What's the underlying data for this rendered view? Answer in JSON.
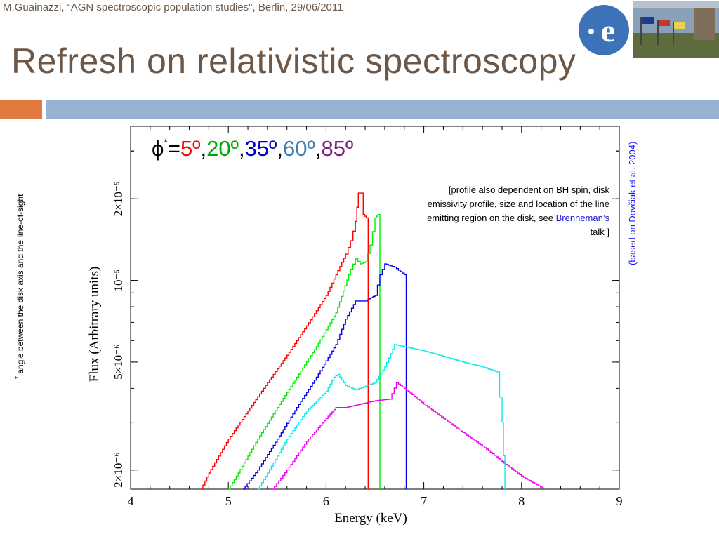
{
  "header": {
    "text": "M.Guainazzi, “AGN spectroscopic population studies\", Berlin, 29/06/2011"
  },
  "slide": {
    "title": "Refresh on relativistic spectroscopy"
  },
  "logo": {
    "glyph": "e",
    "color": "#3c73b8"
  },
  "phi_label": {
    "symbol": "ϕ",
    "star": "*",
    "equals": "=",
    "angles": [
      {
        "text": "5º",
        "color": "#ff0000"
      },
      {
        "text": "20º",
        "color": "#00aa00"
      },
      {
        "text": "35º",
        "color": "#0000cc"
      },
      {
        "text": "60º",
        "color": "#3d7fb0"
      },
      {
        "text": "85º",
        "color": "#7a1f7a"
      }
    ],
    "sep": ","
  },
  "footnote": {
    "star": "*",
    "text": "angle between the disk axis and the line-of-sight"
  },
  "side_note": {
    "text": "(based on Dovčiak et al. 2004)"
  },
  "note": {
    "text": "[profile also dependent on BH spin, disk emissivity profile, size and location of the line emitting region on the disk, see ",
    "link": "Brenneman’s",
    "tail": " talk ]"
  },
  "chart_data": {
    "type": "line",
    "xlabel": "Energy (keV)",
    "ylabel": "Flux (Arbitrary units)",
    "xlim": [
      4,
      9
    ],
    "ylim": [
      1.7e-06,
      3.7e-05
    ],
    "log_y": true,
    "grid": false,
    "x_ticks": [
      "4",
      "5",
      "6",
      "7",
      "8",
      "9"
    ],
    "y_ticks": [
      {
        "value": 2e-06,
        "label": "2×10⁻⁶"
      },
      {
        "value": 5e-06,
        "label": "5×10⁻⁶"
      },
      {
        "value": 1e-05,
        "label": "10⁻⁵"
      },
      {
        "value": 2e-05,
        "label": "2×10⁻⁵"
      }
    ],
    "series": [
      {
        "color": "#ff0000",
        "points": [
          [
            4.72,
            1.7e-06
          ],
          [
            4.8,
            1.95e-06
          ],
          [
            5.0,
            2.6e-06
          ],
          [
            5.2,
            3.3e-06
          ],
          [
            5.4,
            4.2e-06
          ],
          [
            5.6,
            5.3e-06
          ],
          [
            5.8,
            6.8e-06
          ],
          [
            6.0,
            8.8e-06
          ],
          [
            6.2,
            1.25e-05
          ],
          [
            6.25,
            1.4e-05
          ],
          [
            6.3,
            1.65e-05
          ],
          [
            6.33,
            2.1e-05
          ],
          [
            6.36,
            2.1e-05
          ],
          [
            6.38,
            1.75e-05
          ],
          [
            6.41,
            1.7e-05
          ],
          [
            6.43,
            1.7e-06
          ]
        ]
      },
      {
        "color": "#00ee00",
        "points": [
          [
            5.0,
            1.7e-06
          ],
          [
            5.1,
            1.95e-06
          ],
          [
            5.3,
            2.6e-06
          ],
          [
            5.5,
            3.4e-06
          ],
          [
            5.7,
            4.4e-06
          ],
          [
            5.9,
            5.7e-06
          ],
          [
            6.1,
            7.6e-06
          ],
          [
            6.25,
            1.1e-05
          ],
          [
            6.3,
            1.2e-05
          ],
          [
            6.35,
            1.15e-05
          ],
          [
            6.4,
            1.17e-05
          ],
          [
            6.45,
            1.35e-05
          ],
          [
            6.5,
            1.7e-05
          ],
          [
            6.53,
            1.75e-05
          ],
          [
            6.55,
            1.7e-06
          ]
        ]
      },
      {
        "color": "#0000ee",
        "points": [
          [
            5.15,
            1.7e-06
          ],
          [
            5.3,
            2e-06
          ],
          [
            5.5,
            2.6e-06
          ],
          [
            5.7,
            3.4e-06
          ],
          [
            5.9,
            4.4e-06
          ],
          [
            6.1,
            5.8e-06
          ],
          [
            6.2,
            7.2e-06
          ],
          [
            6.3,
            8.4e-06
          ],
          [
            6.4,
            8.4e-06
          ],
          [
            6.5,
            8.8e-06
          ],
          [
            6.55,
            1.05e-05
          ],
          [
            6.6,
            1.15e-05
          ],
          [
            6.7,
            1.12e-05
          ],
          [
            6.8,
            1.05e-05
          ],
          [
            6.82,
            1.7e-06
          ]
        ]
      },
      {
        "color": "#00eeee",
        "points": [
          [
            5.3,
            1.7e-06
          ],
          [
            5.4,
            1.95e-06
          ],
          [
            5.6,
            2.6e-06
          ],
          [
            5.8,
            3.3e-06
          ],
          [
            6.0,
            3.9e-06
          ],
          [
            6.08,
            4.4e-06
          ],
          [
            6.12,
            4.5e-06
          ],
          [
            6.2,
            4.1e-06
          ],
          [
            6.3,
            3.95e-06
          ],
          [
            6.5,
            4.2e-06
          ],
          [
            6.6,
            4.8e-06
          ],
          [
            6.7,
            5.8e-06
          ],
          [
            6.8,
            5.7e-06
          ],
          [
            7.0,
            5.5e-06
          ],
          [
            7.2,
            5.25e-06
          ],
          [
            7.4,
            5e-06
          ],
          [
            7.6,
            4.8e-06
          ],
          [
            7.75,
            4.6e-06
          ],
          [
            7.8,
            3e-06
          ],
          [
            7.83,
            1.7e-06
          ]
        ]
      },
      {
        "color": "#ee00ee",
        "points": [
          [
            5.45,
            1.7e-06
          ],
          [
            5.6,
            2e-06
          ],
          [
            5.8,
            2.55e-06
          ],
          [
            6.0,
            3.1e-06
          ],
          [
            6.1,
            3.4e-06
          ],
          [
            6.2,
            3.4e-06
          ],
          [
            6.5,
            3.6e-06
          ],
          [
            6.65,
            3.65e-06
          ],
          [
            6.72,
            4.2e-06
          ],
          [
            6.8,
            4e-06
          ],
          [
            7.0,
            3.5e-06
          ],
          [
            7.2,
            3.1e-06
          ],
          [
            7.4,
            2.75e-06
          ],
          [
            7.6,
            2.45e-06
          ],
          [
            7.8,
            2.15e-06
          ],
          [
            8.0,
            1.9e-06
          ],
          [
            8.23,
            1.7e-06
          ]
        ]
      }
    ]
  }
}
